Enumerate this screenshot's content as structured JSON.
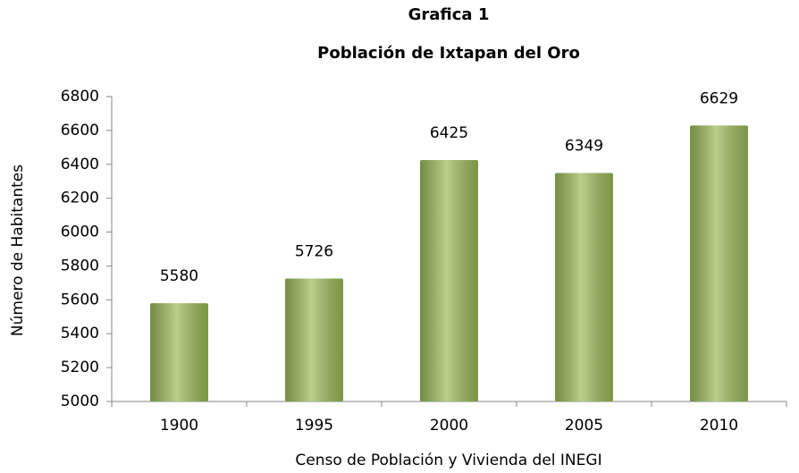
{
  "chart_data": {
    "type": "bar",
    "title": "Grafica 1",
    "subtitle": "Población de Ixtapan del Oro",
    "categories": [
      "1900",
      "1995",
      "2000",
      "2005",
      "2010"
    ],
    "values": [
      5580,
      5726,
      6425,
      6349,
      6629
    ],
    "color": "#9bbb59",
    "ylim": [
      5000,
      6800
    ],
    "yticks": [
      5000,
      5200,
      5400,
      5600,
      5800,
      6000,
      6200,
      6400,
      6600,
      6800
    ],
    "xlabel": "Censo de Población y Vivienda del INEGI",
    "ylabel": "Número de Habitantes",
    "grid": false
  }
}
